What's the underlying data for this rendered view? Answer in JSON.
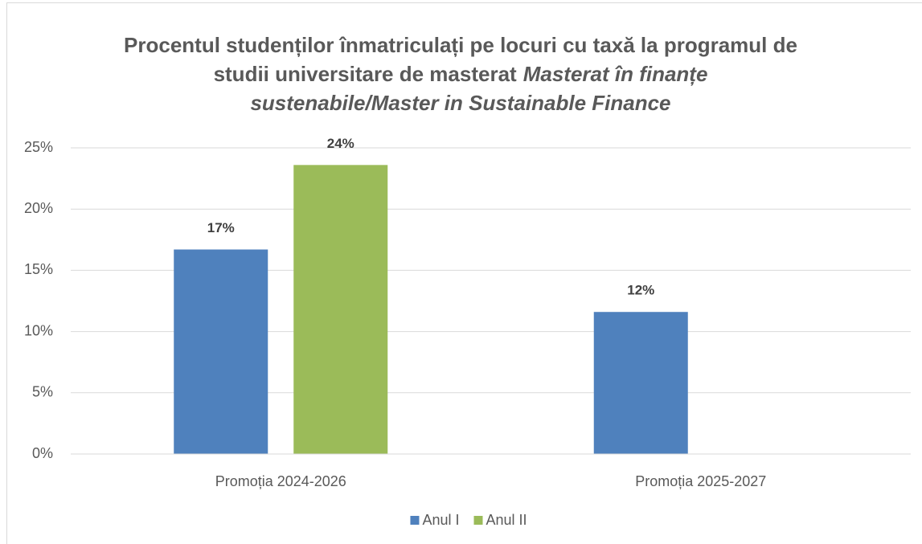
{
  "chart_data": {
    "type": "bar",
    "title_lines": [
      {
        "plain": "Procentul studenților înmatriculați pe locuri cu taxă la programul de"
      },
      {
        "plain": "studii universitare de masterat",
        "italic": "Masterat în finanțe"
      },
      {
        "italic": "sustenabile/Master in Sustainable Finance"
      }
    ],
    "categories": [
      "Promoția 2024-2026",
      "Promoția 2025-2027"
    ],
    "series": [
      {
        "name": "Anul I",
        "color": "#4f81bd",
        "values": [
          16.7,
          11.6
        ],
        "value_labels": [
          "17%",
          "12%"
        ]
      },
      {
        "name": "Anul II",
        "color": "#9bbb59",
        "values": [
          23.6,
          null
        ],
        "value_labels": [
          "24%",
          null
        ]
      }
    ],
    "ylim": [
      0,
      25
    ],
    "yticks": [
      {
        "value": 0,
        "label": "0%"
      },
      {
        "value": 5,
        "label": "5%"
      },
      {
        "value": 10,
        "label": "10%"
      },
      {
        "value": 15,
        "label": "15%"
      },
      {
        "value": 20,
        "label": "20%"
      },
      {
        "value": 25,
        "label": "25%"
      }
    ],
    "grid": true,
    "legend": "bottom"
  }
}
